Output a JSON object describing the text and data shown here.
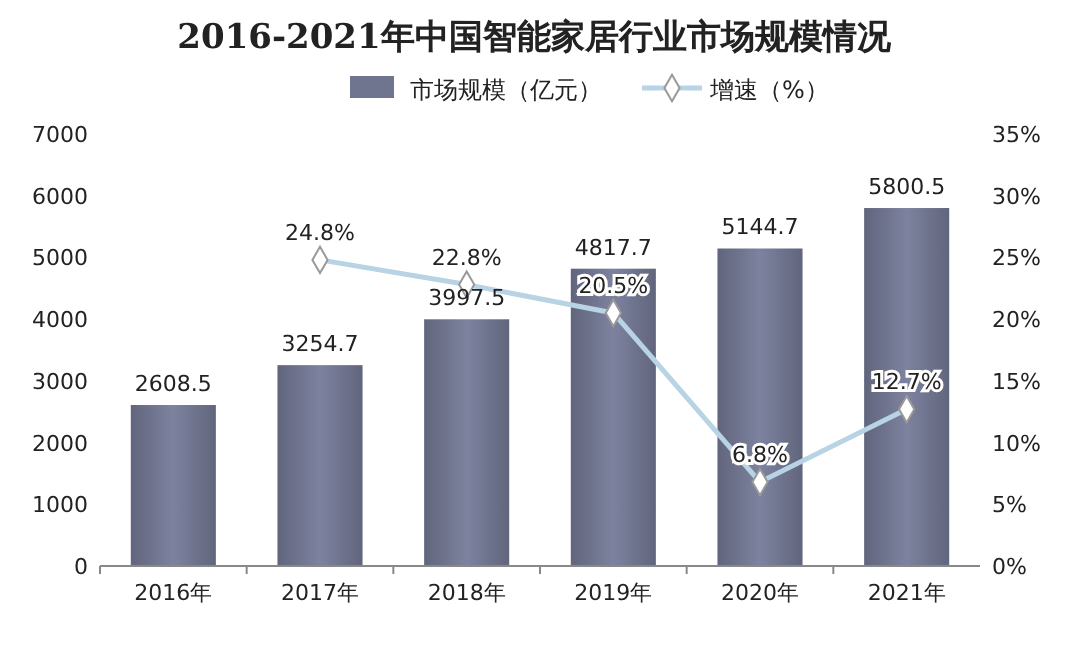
{
  "chart_data": {
    "type": "bar",
    "title": "2016-2021年中国智能家居行业市场规模情况",
    "categories": [
      "2016年",
      "2017年",
      "2018年",
      "2019年",
      "2020年",
      "2021年"
    ],
    "series": [
      {
        "name": "市场规模（亿元）",
        "color": "#70758f",
        "values": [
          2608.5,
          3254.7,
          3997.5,
          4817.7,
          5144.7,
          5800.5
        ],
        "value_labels": [
          "2608.5",
          "3254.7",
          "3997.5",
          "4817.7",
          "5144.7",
          "5800.5"
        ]
      },
      {
        "name": "增速（%）",
        "type": "line",
        "axis": "y2",
        "color": "#b8d3e3",
        "marker": "diamond",
        "values": [
          null,
          24.8,
          22.8,
          20.5,
          6.8,
          12.7
        ],
        "value_labels": [
          null,
          "24.8%",
          "22.8%",
          "20.5%",
          "6.8%",
          "12.7%"
        ]
      }
    ],
    "ylim": [
      0,
      7000
    ],
    "yticks": [
      0,
      1000,
      2000,
      3000,
      4000,
      5000,
      6000,
      7000
    ],
    "y2lim": [
      0,
      35
    ],
    "y2ticks": [
      {
        "value": 0,
        "label": "0%"
      },
      {
        "value": 5,
        "label": "5%"
      },
      {
        "value": 10,
        "label": "10%"
      },
      {
        "value": 15,
        "label": "15%"
      },
      {
        "value": 20,
        "label": "20%"
      },
      {
        "value": 25,
        "label": "25%"
      },
      {
        "value": 30,
        "label": "30%"
      },
      {
        "value": 35,
        "label": "35%"
      }
    ],
    "legend": "top",
    "grid": false
  }
}
